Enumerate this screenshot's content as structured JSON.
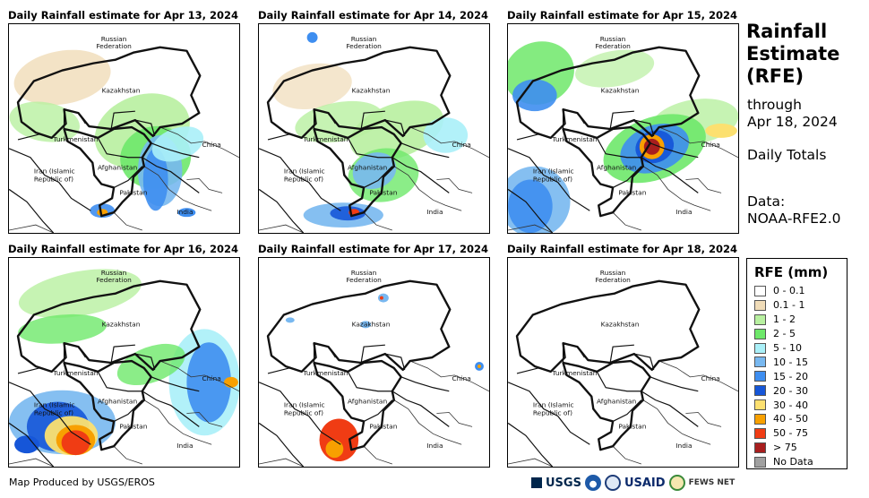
{
  "panels": [
    {
      "title": "Daily Rainfall estimate for Apr 13, 2024"
    },
    {
      "title": "Daily Rainfall estimate for Apr 14, 2024"
    },
    {
      "title": "Daily Rainfall estimate for Apr 15, 2024"
    },
    {
      "title": "Daily Rainfall estimate for Apr 16, 2024"
    },
    {
      "title": "Daily Rainfall estimate for Apr 17, 2024"
    },
    {
      "title": "Daily Rainfall estimate for Apr 18, 2024"
    }
  ],
  "map_labels": {
    "russia_1": "Russian",
    "russia_2": "Federation",
    "kazakhstan": "Kazakhstan",
    "turkmenistan": "Turkmenistan",
    "china": "China",
    "iran_1": "Iran  (Islamic",
    "iran_2": "Republic of)",
    "afghanistan": "Afghanistan",
    "pakistan": "Pakistan",
    "india": "India"
  },
  "sidebar": {
    "title_1": "Rainfall",
    "title_2": "Estimate",
    "title_3": "(RFE)",
    "through": "through",
    "date": "Apr 18, 2024",
    "totals": "Daily Totals",
    "data_label": "Data:",
    "data_source": "NOAA-RFE2.0"
  },
  "legend": {
    "title": "RFE (mm)",
    "items": [
      {
        "label": "0 - 0.1",
        "color": "#ffffff"
      },
      {
        "label": "0.1 - 1",
        "color": "#f0dcb8"
      },
      {
        "label": "1 - 2",
        "color": "#b8f0a0"
      },
      {
        "label": "2 - 5",
        "color": "#6ee86a"
      },
      {
        "label": "5 - 10",
        "color": "#aaf0f8"
      },
      {
        "label": "10 - 15",
        "color": "#78b8f0"
      },
      {
        "label": "15 - 20",
        "color": "#3e8ef0"
      },
      {
        "label": "20 - 30",
        "color": "#1656d8"
      },
      {
        "label": "30 - 40",
        "color": "#fce070"
      },
      {
        "label": "40 - 50",
        "color": "#f8a000"
      },
      {
        "label": "50 - 75",
        "color": "#f03c14"
      },
      {
        "label": "> 75",
        "color": "#a81e1e"
      },
      {
        "label": "No Data",
        "color": "#a0a0a0"
      }
    ]
  },
  "footer": {
    "credit": "Map Produced by USGS/EROS",
    "logo_usgs": "USGS",
    "logo_usaid": "USAID",
    "logo_fews": "FEWS NET"
  }
}
